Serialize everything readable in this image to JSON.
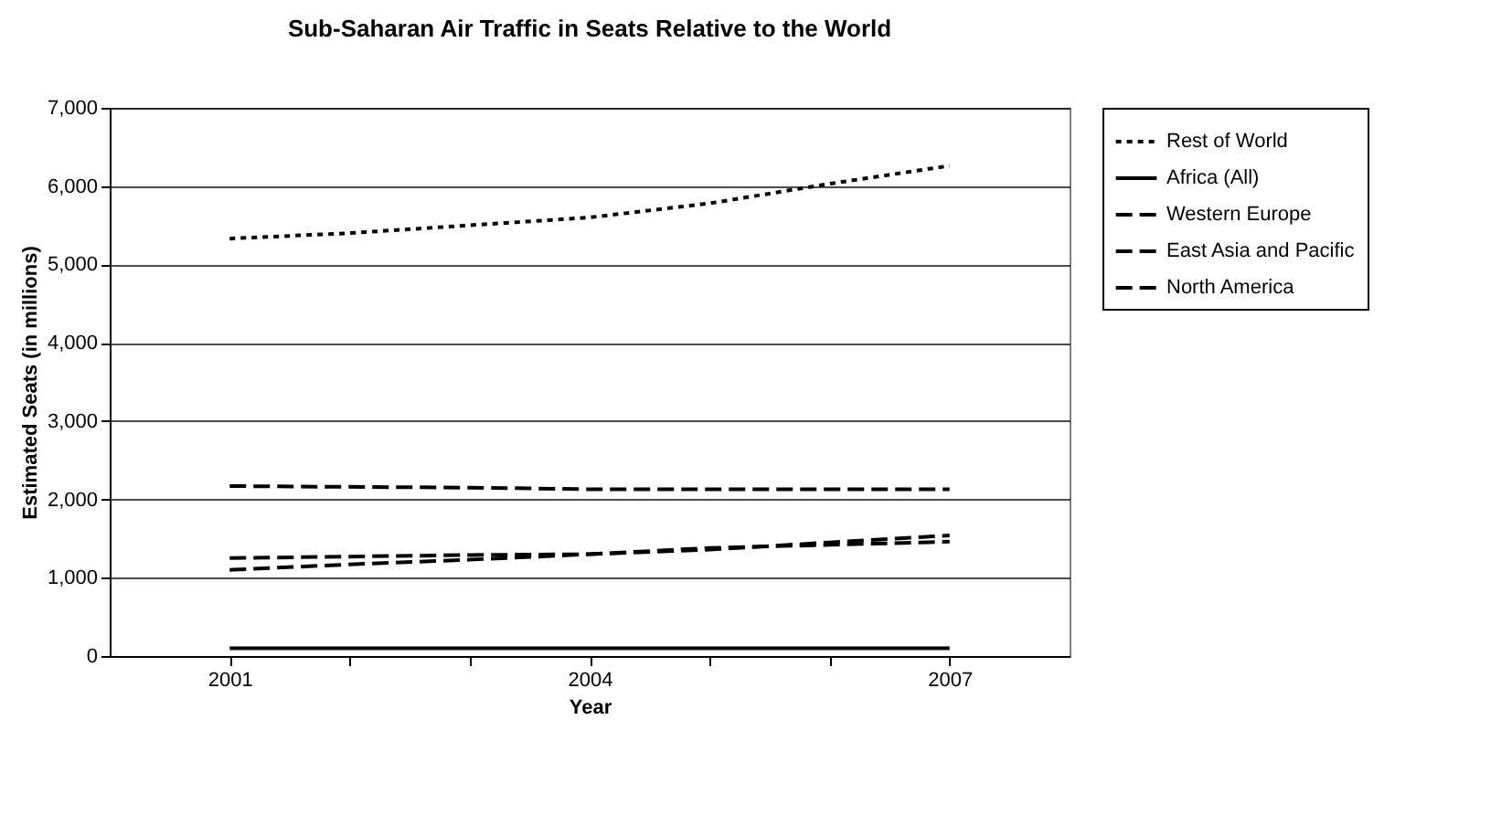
{
  "chart_data": {
    "type": "line",
    "title": "Sub-Saharan Air Traffic in Seats Relative to the World",
    "xlabel": "Year",
    "ylabel": "Estimated Seats (in millions)",
    "categories": [
      "2001",
      null,
      null,
      "2004",
      null,
      null,
      "2007"
    ],
    "series": [
      {
        "name": "Rest of World",
        "color": "#000000",
        "line_style": "dotted",
        "values": [
          5330,
          5400,
          5500,
          5600,
          5780,
          6030,
          6260
        ]
      },
      {
        "name": "Africa (All)",
        "color": "#000000",
        "line_style": "solid",
        "values": [
          100,
          100,
          100,
          100,
          100,
          100,
          100
        ]
      },
      {
        "name": "Western Europe",
        "color": "#000000",
        "line_style": "dashed",
        "values": [
          1250,
          1270,
          1290,
          1300,
          1360,
          1450,
          1540
        ]
      },
      {
        "name": "East Asia and Pacific",
        "color": "#000000",
        "line_style": "dashed",
        "values": [
          1100,
          1170,
          1230,
          1300,
          1380,
          1420,
          1460
        ]
      },
      {
        "name": "North America",
        "color": "#000000",
        "line_style": "dashed",
        "values": [
          2170,
          2160,
          2150,
          2130,
          2130,
          2130,
          2130
        ]
      }
    ],
    "ylim": [
      0,
      7000
    ],
    "yticks": [
      0,
      {
        "value": 1000,
        "label": "1,000"
      },
      {
        "value": 2000,
        "label": "2,000"
      },
      {
        "value": 3000,
        "label": "3,000"
      },
      {
        "value": 4000,
        "label": "4,000"
      },
      {
        "value": 5000,
        "label": "5,000"
      },
      {
        "value": 6000,
        "label": "6,000"
      },
      {
        "value": 7000,
        "label": "7,000"
      }
    ],
    "grid": "y",
    "legend": "right",
    "marker": "none"
  }
}
